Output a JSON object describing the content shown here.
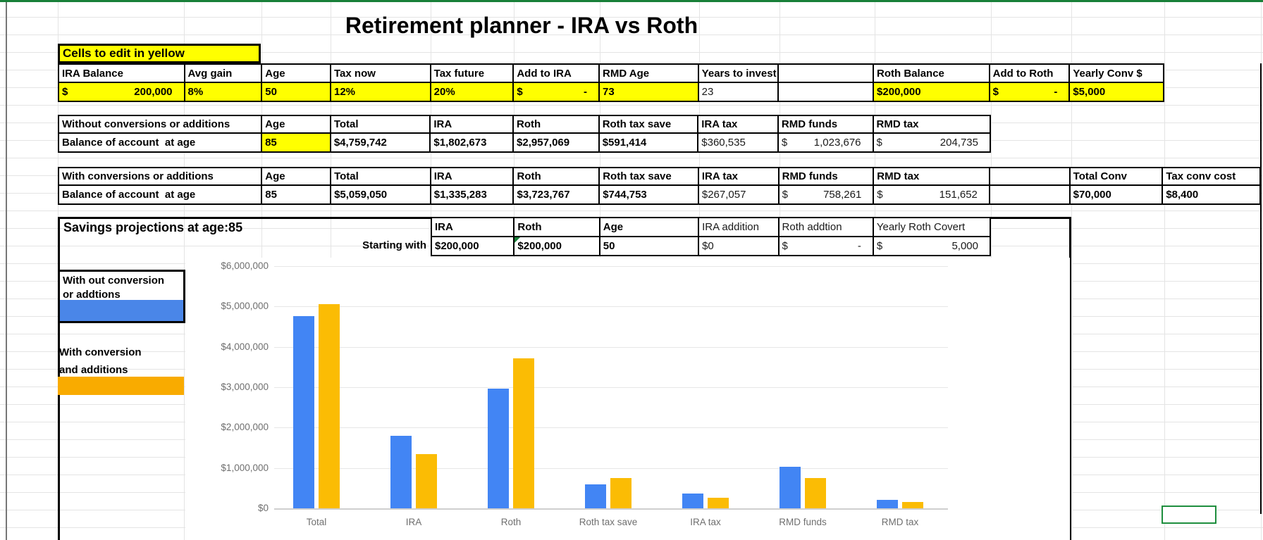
{
  "title": "Retirement planner  - IRA vs Roth",
  "edit_note": "Cells to edit in yellow",
  "inputs": {
    "headers": [
      "IRA Balance",
      "Avg gain",
      "Age",
      "Tax now",
      "Tax future",
      "Add to IRA",
      "RMD Age",
      "Years to invest",
      "",
      "Roth Balance",
      "Add to Roth",
      "Yearly Conv $"
    ],
    "ira_balance": {
      "cur": "$",
      "amt": "200,000"
    },
    "avg_gain": "8%",
    "age": "50",
    "tax_now": "12%",
    "tax_future": "20%",
    "add_to_ira": {
      "cur": "$",
      "amt": "-"
    },
    "rmd_age": "73",
    "years_to_invest": "23",
    "roth_balance": "$200,000",
    "add_to_roth": {
      "cur": "$",
      "amt": "-"
    },
    "yearly_conv": "$5,000"
  },
  "without_table": {
    "title": "Without conversions or additions",
    "headers": [
      "Age",
      "Total",
      "IRA",
      "Roth",
      "Roth tax save",
      "IRA tax",
      "RMD funds",
      "RMD tax"
    ],
    "row_label": "Balance of account  at age",
    "age": "85",
    "total": "$4,759,742",
    "ira": "$1,802,673",
    "roth": "$2,957,069",
    "roth_tax_save": "$591,414",
    "ira_tax": "$360,535",
    "rmd_funds": {
      "cur": "$",
      "amt": "1,023,676"
    },
    "rmd_tax": {
      "cur": "$",
      "amt": "204,735"
    }
  },
  "with_table": {
    "title": "With conversions or additions",
    "headers": [
      "Age",
      "Total",
      "IRA",
      "Roth",
      "Roth tax save",
      "IRA tax",
      "RMD funds",
      "RMD tax",
      "",
      "Total Conv",
      "Tax conv cost"
    ],
    "row_label": "Balance of account  at age",
    "age": "85",
    "total": "$5,059,050",
    "ira": "$1,335,283",
    "roth": "$3,723,767",
    "roth_tax_save": "$744,753",
    "ira_tax": "$267,057",
    "rmd_funds": {
      "cur": "$",
      "amt": "758,261"
    },
    "rmd_tax": {
      "cur": "$",
      "amt": "151,652"
    },
    "total_conv": "$70,000",
    "tax_conv_cost": "$8,400"
  },
  "savings": {
    "title": "Savings projections at age:85",
    "headers": [
      "IRA",
      "Roth",
      "Age",
      "IRA addition",
      "Roth addtion",
      "Yearly Roth Covert"
    ],
    "row_label": "Starting with",
    "ira": "$200,000",
    "roth": "$200,000",
    "age": "50",
    "ira_addition": "$0",
    "roth_addition": {
      "cur": "$",
      "amt": "-"
    },
    "yearly_roth_convert": {
      "cur": "$",
      "amt": "5,000"
    }
  },
  "legend": [
    {
      "line1": "With out conversion",
      "line2": "or addtions",
      "color": "#4a86e8"
    },
    {
      "line1": "With conversion",
      "line2": "and additions",
      "color": "#f9ab00"
    }
  ],
  "colors": {
    "highlight_yellow": "#ffff00",
    "series_blue": "#4285f4",
    "series_yellow": "#fbbc04",
    "selection_green": "#1e8e3e",
    "top_bar_green": "#188038"
  },
  "chart_data": {
    "type": "bar",
    "categories": [
      "Total",
      "IRA",
      "Roth",
      "Roth tax save",
      "IRA tax",
      "RMD funds",
      "RMD tax"
    ],
    "series": [
      {
        "name": "With out conversion or addtions",
        "color": "#4285f4",
        "values": [
          4759742,
          1802673,
          2957069,
          591414,
          360535,
          1023676,
          204735
        ]
      },
      {
        "name": "With conversion and additions",
        "color": "#fbbc04",
        "values": [
          5059050,
          1335283,
          3723767,
          744753,
          267057,
          758261,
          151652
        ]
      }
    ],
    "title": "",
    "xlabel": "",
    "ylabel": "",
    "ylim": [
      0,
      6000000
    ],
    "ytick_step": 1000000,
    "ytick_labels": [
      "$0",
      "$1,000,000",
      "$2,000,000",
      "$3,000,000",
      "$4,000,000",
      "$5,000,000",
      "$6,000,000"
    ],
    "grid": true,
    "legend_position": "left"
  }
}
